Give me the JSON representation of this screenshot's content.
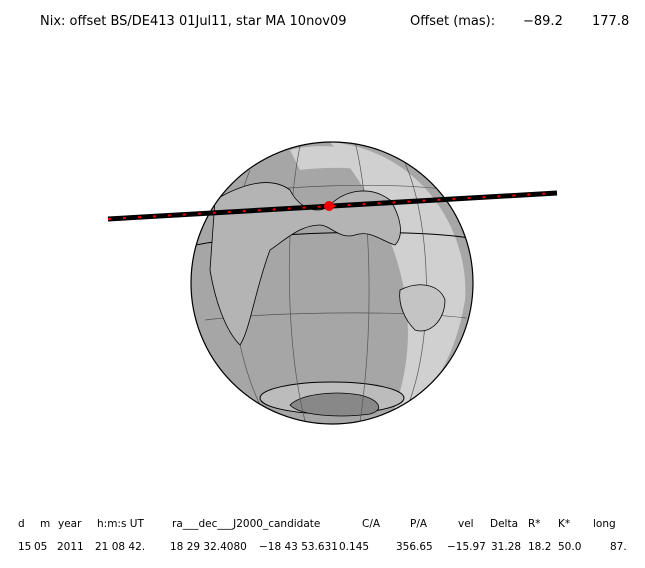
{
  "header": {
    "title": "Nix: offset BS/DE413 01Jul11, star MA 10nov09",
    "offset_label": "Offset (mas):",
    "offset_values": [
      "−89.2",
      "177.8"
    ]
  },
  "table": {
    "columns": [
      "d",
      "m",
      "year",
      "h:m:s UT",
      "ra___dec___J2000_candidate",
      "C/A",
      "P/A",
      "vel",
      "Delta",
      "R*",
      "K*",
      "long"
    ],
    "rows": [
      [
        "15",
        "05",
        "2011",
        "21 08 42.",
        "18 29 32.4080",
        "−18 43 53.631",
        "0.145",
        "356.65",
        "−15.97",
        "31.28",
        "18.2",
        "50.0",
        "87."
      ]
    ]
  }
}
